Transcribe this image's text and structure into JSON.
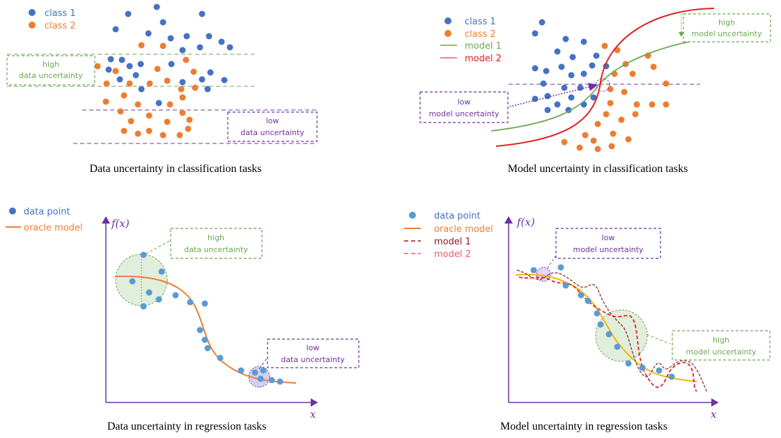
{
  "colors": {
    "blue": "#4472c4",
    "orange": "#ed7d31",
    "green": "#6aa84f",
    "red": "#e02020",
    "darkred": "#8b1a1a",
    "pink": "#ef5a6f",
    "purple": "#7030a0",
    "lightblue": "#5b9bd5"
  },
  "panel1": {
    "legend": {
      "class1": "class 1",
      "class2": "class 2"
    },
    "high_box": {
      "line1": "high",
      "line2": "data  uncertainty"
    },
    "low_box": {
      "line1": "low",
      "line2": "data  uncertainty"
    },
    "caption": "Data uncertainty in classification tasks"
  },
  "panel2": {
    "legend": {
      "class1": "class 1",
      "class2": "class 2",
      "model1": "model 1",
      "model2": "model 2"
    },
    "high_box": {
      "line1": "high",
      "line2": "model uncertainty"
    },
    "low_box": {
      "line1": "low",
      "line2": "model uncertainty"
    },
    "caption": "Model uncertainty in classification tasks"
  },
  "panel3": {
    "legend": {
      "data_point": "data point",
      "oracle": "oracle model"
    },
    "high_box": {
      "line1": "high",
      "line2": "data uncertainty"
    },
    "low_box": {
      "line1": "low",
      "line2": "data uncertainty"
    },
    "fx_label": "f(x)",
    "x_label": "x",
    "caption": "Data uncertainty in regression tasks"
  },
  "panel4": {
    "legend": {
      "data_point": "data point",
      "oracle": "oracle model",
      "model1": "model 1",
      "model2": "model 2"
    },
    "high_box": {
      "line1": "high",
      "line2": "model uncertainty"
    },
    "low_box": {
      "line1": "low",
      "line2": "model uncertainty"
    },
    "fx_label": "f(x)",
    "x_label": "x",
    "caption": "Model uncertainty in regression tasks"
  }
}
